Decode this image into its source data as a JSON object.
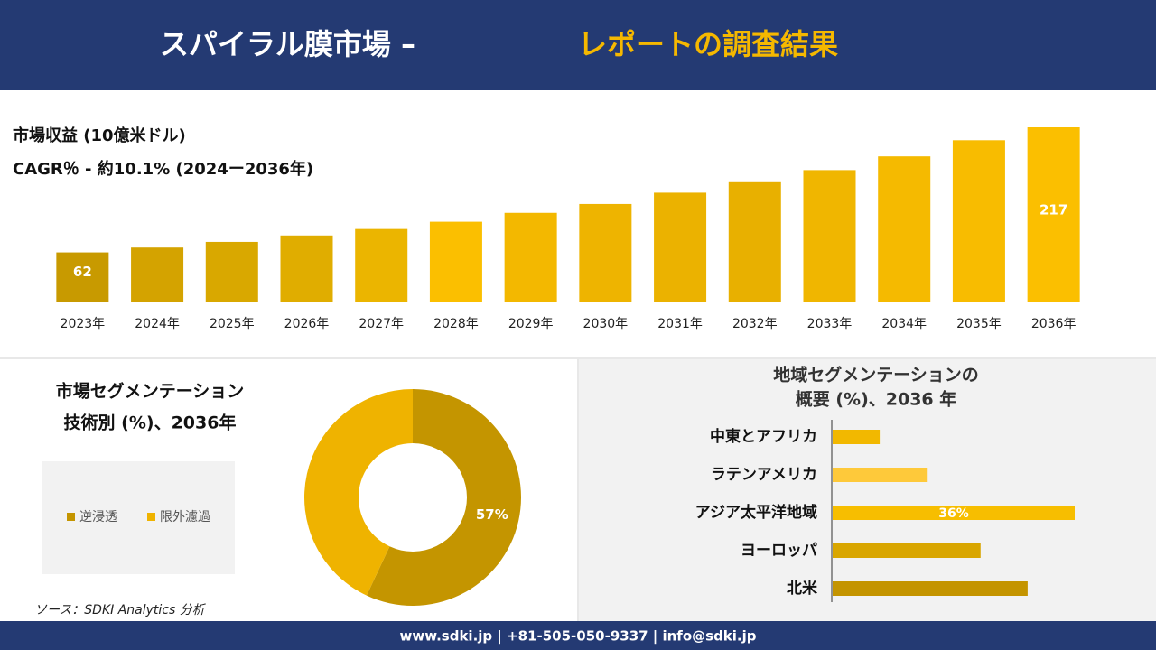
{
  "header": {
    "title_main": "スパイラル膜市場 –",
    "title_highlight": "レポートの調査結果"
  },
  "source": "ソース：SDKI Analytics 分析",
  "footer": "www.sdki.jp | +81-505-050-9337 | info@sdki.jp",
  "chart_data": [
    {
      "type": "bar",
      "title": "市場収益 (10億米ドル)",
      "subtitle": "CAGR％ - 約10.1% (2024ー2036年)",
      "categories": [
        "2023年",
        "2024年",
        "2025年",
        "2026年",
        "2027年",
        "2028年",
        "2029年",
        "2030年",
        "2031年",
        "2032年",
        "2033年",
        "2034年",
        "2035年",
        "2036年"
      ],
      "values": [
        62,
        68,
        75,
        83,
        91,
        100,
        111,
        122,
        136,
        149,
        164,
        181,
        201,
        217
      ],
      "colors": [
        "#c89a00",
        "#d4a300",
        "#d9a800",
        "#e0ad00",
        "#ebb500",
        "#fbbf00",
        "#f3b800",
        "#eeb400",
        "#ebb200",
        "#e8b000",
        "#f0b600",
        "#f5ba00",
        "#f8bc00",
        "#fbbf00"
      ]
    },
    {
      "type": "donut",
      "title": [
        "市場セグメンテーション",
        "技術別 (%)、2036年"
      ],
      "categories": [
        "逆浸透",
        "限外濾過"
      ],
      "values": [
        57,
        43
      ],
      "value_labels": [
        "57%",
        null
      ],
      "colors": [
        "#c49500",
        "#efb300"
      ]
    },
    {
      "type": "hbar",
      "title": [
        "地域セグメンテーションの",
        "概要 (%)、2036 年"
      ],
      "categories": [
        "中東とアフリカ",
        "ラテンアメリカ",
        "アジア太平洋地域",
        "ヨーロッパ",
        "北米"
      ],
      "values": [
        7,
        14,
        36,
        22,
        29
      ],
      "value_labels": [
        null,
        null,
        "36%",
        null,
        null
      ],
      "colors": [
        "#f2b800",
        "#fec93a",
        "#f7be00",
        "#d9a600",
        "#c49400"
      ]
    }
  ]
}
